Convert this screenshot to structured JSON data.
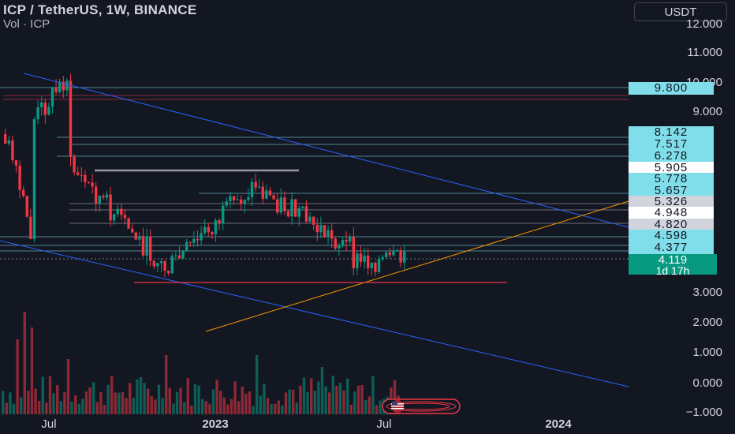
{
  "header": {
    "symbol_line": "ICP / TetherUS, 1W, BINANCE",
    "volume_line": "Vol · ICP"
  },
  "currency_button": {
    "label": "USDT"
  },
  "price_axis": {
    "labels": [
      "12.000",
      "11.000",
      "10.000",
      "9.000",
      "3.000",
      "2.000",
      "1.000",
      "0.000",
      "−1.000"
    ]
  },
  "price_tags": [
    {
      "label": "9.800",
      "style": "cyan"
    },
    {
      "label": "8.142",
      "style": "cyan"
    },
    {
      "label": "7.517",
      "style": "cyan"
    },
    {
      "label": "6.278",
      "style": "cyan"
    },
    {
      "label": "5.905",
      "style": "white"
    },
    {
      "label": "5.778",
      "style": "cyan"
    },
    {
      "label": "5.657",
      "style": "cyan"
    },
    {
      "label": "5.326",
      "style": "grey"
    },
    {
      "label": "4.948",
      "style": "white"
    },
    {
      "label": "4.820",
      "style": "grey"
    },
    {
      "label": "4.598",
      "style": "cyan"
    },
    {
      "label": "4.377",
      "style": "cyan"
    }
  ],
  "current_price": {
    "price": "4.119",
    "countdown": "1d 17h",
    "color": "#089981"
  },
  "time_axis": {
    "labels": [
      "Jul",
      "2023",
      "Jul",
      "2024"
    ]
  },
  "colors": {
    "background": "#131722",
    "up": "#089981",
    "down": "#f23645",
    "channel": "#2962ff",
    "trendline": "#ff9800",
    "level": "#80deea"
  }
}
